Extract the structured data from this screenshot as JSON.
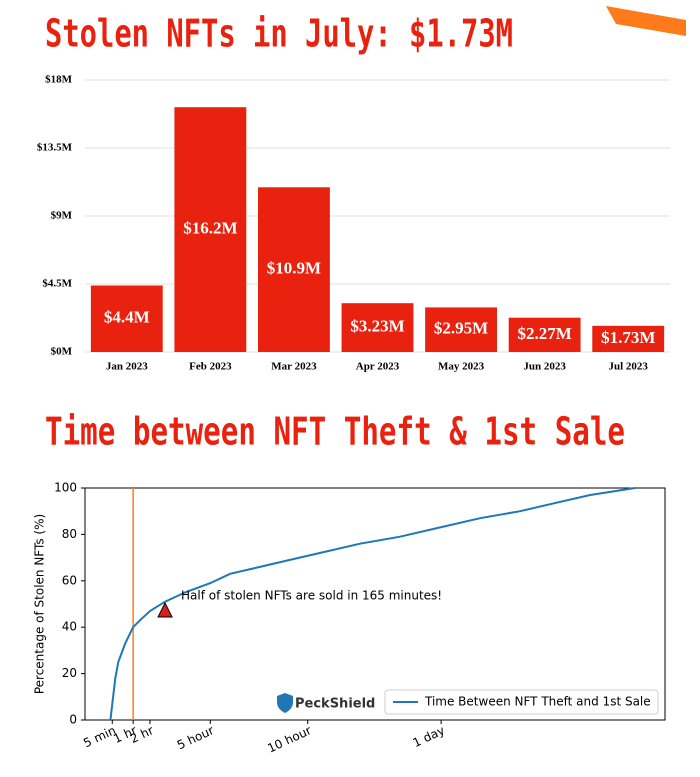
{
  "chart_data": [
    {
      "type": "bar",
      "title": "Stolen NFTs in July: $1.73M",
      "categories": [
        "Jan 2023",
        "Feb 2023",
        "Mar 2023",
        "Apr 2023",
        "May 2023",
        "Jun 2023",
        "Jul 2023"
      ],
      "values": [
        4.4,
        16.2,
        10.9,
        3.23,
        2.95,
        2.27,
        1.73
      ],
      "value_labels": [
        "$4.4M",
        "$16.2M",
        "$10.9M",
        "$3.23M",
        "$2.95M",
        "$2.27M",
        "$1.73M"
      ],
      "color": "#e8220f",
      "ylim": [
        0,
        18
      ],
      "yticks": [
        {
          "value": 0,
          "label": "$0M"
        },
        {
          "value": 4.5,
          "label": "$4.5M"
        },
        {
          "value": 9,
          "label": "$9M"
        },
        {
          "value": 13.5,
          "label": "$13.5M"
        },
        {
          "value": 18,
          "label": "$18M"
        }
      ],
      "grid": true
    },
    {
      "type": "line",
      "title": "Time between NFT Theft & 1st Sale",
      "y_label": "Percentage of Stolen NFTs (%)",
      "x": [
        0,
        13,
        21,
        39,
        60,
        85,
        120,
        165,
        225,
        300,
        361,
        453,
        545,
        676,
        929,
        1181,
        1434,
        1694,
        1955,
        2151,
        2412,
        2705
      ],
      "series": [
        {
          "name": "Time Between NFT Theft and 1st Sale",
          "color": "#1f77b4",
          "values": [
            0,
            18,
            25,
            33,
            40,
            43,
            47,
            51,
            55,
            59,
            63,
            66,
            69,
            72,
            76,
            79,
            83,
            87,
            90,
            93,
            97,
            100
          ]
        }
      ],
      "xlim": [
        -70,
        2900
      ],
      "xticks": [
        {
          "value": 5,
          "label": "5 min"
        },
        {
          "value": 60,
          "label": "1 hr"
        },
        {
          "value": 120,
          "label": "2 hr"
        },
        {
          "value": 300,
          "label": "5 hour"
        },
        {
          "value": 600,
          "label": "10 hour"
        },
        {
          "value": 1440,
          "label": "1 day"
        }
      ],
      "ylim": [
        0,
        100
      ],
      "yticks": [
        0,
        20,
        40,
        60,
        80,
        100
      ],
      "vline": {
        "x": 60,
        "color": "#ff7f0e"
      },
      "annotation": {
        "text": "Half of stolen NFTs are sold in 165 minutes!",
        "x": 165,
        "y": 47,
        "color": "#d62020"
      },
      "logo": "PeckShield",
      "legend": "lower right"
    }
  ]
}
